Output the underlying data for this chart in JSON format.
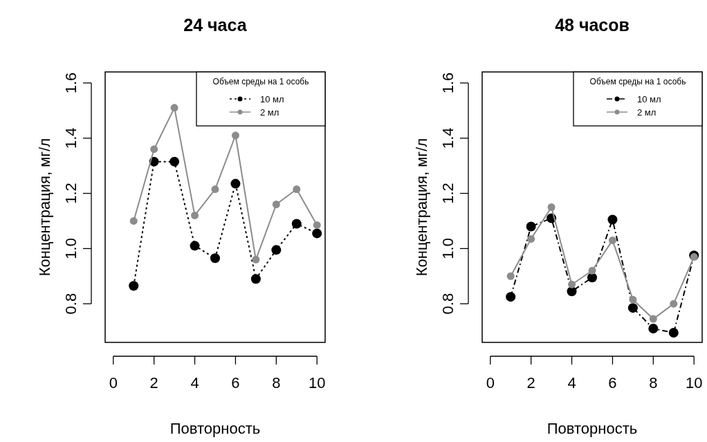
{
  "chart_data": [
    {
      "type": "line",
      "title": "24 часа",
      "xlabel": "Повторность",
      "ylabel": "Концентрация, мг/л",
      "legend_title": "Объем среды на 1 особь",
      "legend": "top right",
      "marker": "circle",
      "grid": false,
      "x": [
        1,
        2,
        3,
        4,
        5,
        6,
        7,
        8,
        9,
        10
      ],
      "xlim": [
        -0.4,
        10.4
      ],
      "xticks": [
        0,
        2,
        4,
        6,
        8,
        10
      ],
      "ylim": [
        0.66,
        1.64
      ],
      "yticks": [
        0.8,
        {
          "value": 1,
          "label": "1.0"
        },
        1.2,
        1.4,
        1.6
      ],
      "series": [
        {
          "name": "10 мл",
          "color": "#000000",
          "line_style": "dotted",
          "values": [
            0.865,
            1.315,
            1.315,
            1.01,
            0.965,
            1.235,
            0.89,
            0.995,
            1.09,
            1.055
          ]
        },
        {
          "name": "2 мл",
          "color": "#8c8c8c",
          "line_style": "solid",
          "values": [
            1.1,
            1.36,
            1.51,
            1.12,
            1.215,
            1.41,
            0.96,
            1.16,
            1.215,
            1.085
          ]
        }
      ]
    },
    {
      "type": "line",
      "title": "48 часов",
      "xlabel": "Повторность",
      "ylabel": "Концентрация, мг/л",
      "legend_title": "Объем среды на 1 особь",
      "legend": "top right",
      "marker": "circle",
      "grid": false,
      "x": [
        1,
        2,
        3,
        4,
        5,
        6,
        7,
        8,
        9,
        10
      ],
      "xlim": [
        -0.4,
        10.4
      ],
      "xticks": [
        0,
        2,
        4,
        6,
        8,
        10
      ],
      "ylim": [
        0.66,
        1.64
      ],
      "yticks": [
        0.8,
        {
          "value": 1,
          "label": "1.0"
        },
        1.2,
        1.4,
        1.6
      ],
      "series": [
        {
          "name": "10 мл",
          "color": "#000000",
          "line_style": "dashed",
          "values": [
            0.825,
            1.08,
            1.11,
            0.845,
            0.895,
            1.105,
            0.785,
            0.71,
            0.695,
            0.975
          ]
        },
        {
          "name": "2 мл",
          "color": "#8c8c8c",
          "line_style": "solid",
          "values": [
            0.9,
            1.035,
            1.15,
            0.87,
            0.92,
            1.03,
            0.815,
            0.745,
            0.8,
            0.97
          ]
        }
      ]
    }
  ]
}
